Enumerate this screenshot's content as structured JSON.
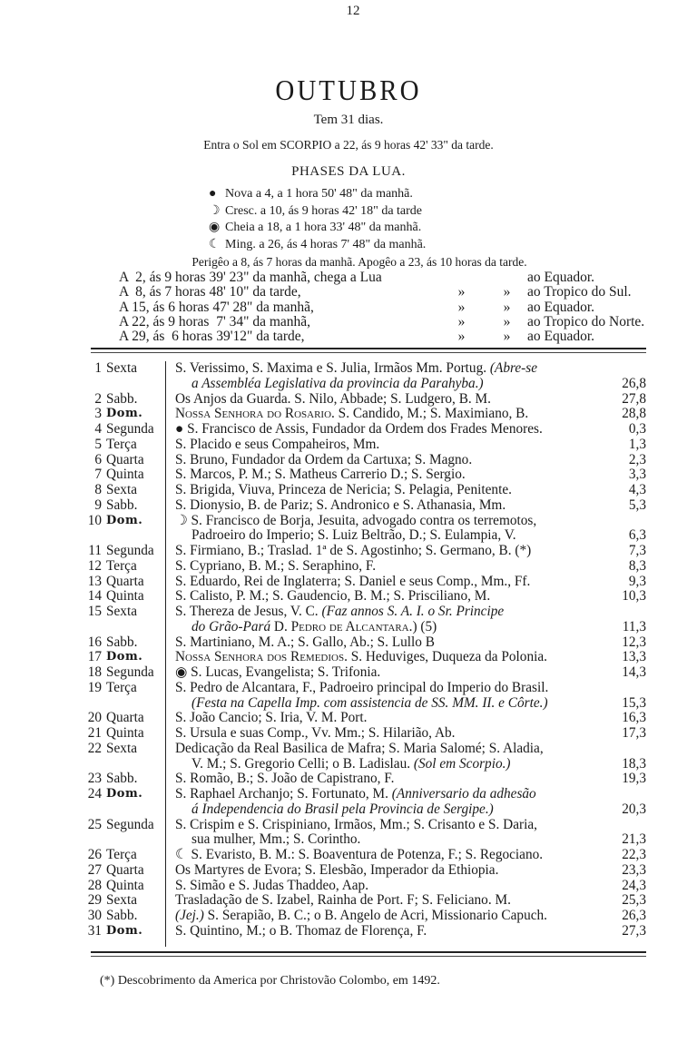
{
  "page_number": "12",
  "month": "OUTUBRO",
  "days_line": "Tem 31 dias.",
  "sun_line": "Entra o Sol em SCORPIO a 22, ás 9 horas 42' 33\" da tarde.",
  "phases_title": "PHASES DA LUA.",
  "phases": [
    {
      "icon": "new-moon",
      "glyph": "●",
      "text": "Nova  a  4, a  1 hora  50' 48\" da manhã."
    },
    {
      "icon": "first-quarter-moon",
      "glyph": "☽",
      "text": "Cresc. a 10, ás 9 horas 42' 18\" da tarde"
    },
    {
      "icon": "full-moon",
      "glyph": "◉",
      "text": "Cheia a 18, a  1 hora  33' 48\" da manhã."
    },
    {
      "icon": "last-quarter-moon",
      "glyph": "☾",
      "text": "Ming. a 26, ás 4 horas  7' 48\" da manhã."
    }
  ],
  "perigee_line": "Perigêo a 8, ás 7 horas da manhã. Apogêo a 23, ás 10 horas da tarde.",
  "equator_lines": [
    {
      "a": "A  2, ás 9 horas 39' 23\" da manhã, chega a Lua",
      "q1": "",
      "q2": "",
      "b": "ao Equador."
    },
    {
      "a": "A  8, ás 7 horas 48' 10\" da tarde,",
      "q1": "»",
      "q2": "»",
      "b": "ao Tropico do Sul."
    },
    {
      "a": "A 15, ás 6 horas 47' 28\" da manhã,",
      "q1": "»",
      "q2": "»",
      "b": "ao Equador."
    },
    {
      "a": "A 22, ás 9 horas  7' 34\" da manhã,",
      "q1": "»",
      "q2": "»",
      "b": "ao Tropico do Norte."
    },
    {
      "a": "A 29, ás  6 horas 39'12\" da tarde,",
      "q1": "»",
      "q2": "»",
      "b": "ao Equador."
    }
  ],
  "rows": [
    {
      "d": "1",
      "w": "Sexta",
      "lines": [
        [
          "S. Verissimo, S. Maxima e S. Julia, Irmãos Mm. Portug. ",
          {
            "t": "(Abre-se",
            "s": "i"
          }
        ],
        [
          {
            "t": "a Assembléa Legislativa da provincia da Parahyba.)",
            "s": "i"
          }
        ]
      ],
      "v": "26,8"
    },
    {
      "d": "2",
      "w": "Sabb.",
      "lines": [
        [
          "Os Anjos da Guarda. S. Nilo, Abbade; S. Ludgero, B. M."
        ]
      ],
      "v": "27,8"
    },
    {
      "d": "3",
      "w": "Dom.",
      "bold": true,
      "lines": [
        [
          {
            "t": "Nossa Senhora do Rosario.",
            "s": "sc"
          },
          " S. Candido, M.; S. Maximiano, B."
        ]
      ],
      "v": "28,8"
    },
    {
      "d": "4",
      "w": "Segunda",
      "icon": "new-moon",
      "glyph": "● ",
      "lines": [
        [
          "S. Francisco de Assis, Fundador da Ordem dos Frades Menores."
        ]
      ],
      "v": "0,3"
    },
    {
      "d": "5",
      "w": "Terça",
      "lines": [
        [
          "S. Placido e seus Compaheiros, Mm."
        ]
      ],
      "v": "1,3"
    },
    {
      "d": "6",
      "w": "Quarta",
      "lines": [
        [
          "S. Bruno, Fundador da Ordem da Cartuxa; S. Magno."
        ]
      ],
      "v": "2,3"
    },
    {
      "d": "7",
      "w": "Quinta",
      "lines": [
        [
          "S. Marcos, P. M.; S. Matheus Carrerio D.; S. Sergio."
        ]
      ],
      "v": "3,3"
    },
    {
      "d": "8",
      "w": "Sexta",
      "lines": [
        [
          "S. Brigida, Viuva, Princeza de Nericia; S. Pelagia, Penitente."
        ]
      ],
      "v": "4,3"
    },
    {
      "d": "9",
      "w": "Sabb.",
      "lines": [
        [
          "S. Dionysio, B. de Pariz; S. Andronico e S. Athanasia, Mm."
        ]
      ],
      "v": "5,3"
    },
    {
      "d": "10",
      "w": "Dom.",
      "bold": true,
      "icon": "first-quarter-moon",
      "glyph": "☽ ",
      "lines": [
        [
          "S. Francisco de Borja, Jesuita, advogado contra os terremotos,"
        ],
        [
          "Padroeiro do Imperio; S. Luiz Beltrão, D.; S. Eulampia, V."
        ]
      ],
      "v": "6,3"
    },
    {
      "d": "11",
      "w": "Segunda",
      "lines": [
        [
          "S. Firmiano, B.; Traslad. 1ª de S. Agostinho; S. Germano, B. (*)"
        ]
      ],
      "v": "7,3"
    },
    {
      "d": "12",
      "w": "Terça",
      "lines": [
        [
          "S. Cypriano, B. M.; S. Seraphino, F."
        ]
      ],
      "v": "8,3"
    },
    {
      "d": "13",
      "w": "Quarta",
      "lines": [
        [
          "S. Eduardo, Rei de Inglaterra; S. Daniel e seus Comp., Mm., Ff."
        ]
      ],
      "v": "9,3"
    },
    {
      "d": "14",
      "w": "Quinta",
      "lines": [
        [
          "S. Calisto, P. M.; S. Gaudencio, B. M.; S. Prisciliano, M."
        ]
      ],
      "v": "10,3"
    },
    {
      "d": "15",
      "w": "Sexta",
      "lines": [
        [
          "S. Thereza de Jesus, V. C. ",
          {
            "t": "(Faz annos S. A. I. o Sr. Principe",
            "s": "i"
          }
        ],
        [
          {
            "t": "do Grão-Pará",
            "s": "i"
          },
          " D. ",
          {
            "t": "Pedro de Alcantara.",
            "s": "sc"
          },
          ") (5)"
        ]
      ],
      "v": "11,3"
    },
    {
      "d": "16",
      "w": "Sabb.",
      "lines": [
        [
          "S. Martiniano, M. A.; S. Gallo, Ab.; S. Lullo B"
        ]
      ],
      "v": "12,3"
    },
    {
      "d": "17",
      "w": "Dom.",
      "bold": true,
      "lines": [
        [
          {
            "t": "Nossa Senhora dos Remedios.",
            "s": "sc"
          },
          " S. Heduviges, Duqueza da Polonia."
        ]
      ],
      "v": "13,3"
    },
    {
      "d": "18",
      "w": "Segunda",
      "icon": "full-moon",
      "glyph": "◉ ",
      "lines": [
        [
          "S. Lucas, Evangelista; S. Trifonia."
        ]
      ],
      "v": "14,3"
    },
    {
      "d": "19",
      "w": "Terça",
      "lines": [
        [
          "S. Pedro de Alcantara, F., Padroeiro principal do Imperio do Brasil."
        ],
        [
          {
            "t": "(Festa na Capella Imp. com assistencia de SS. MM. II. e Côrte.)",
            "s": "i"
          }
        ]
      ],
      "v": "15,3"
    },
    {
      "d": "20",
      "w": "Quarta",
      "lines": [
        [
          "S. João Cancio; S. Iria, V. M. Port."
        ]
      ],
      "v": "16,3"
    },
    {
      "d": "21",
      "w": "Quinta",
      "lines": [
        [
          "S. Ursula e suas Comp., Vv. Mm.; S. Hilarião, Ab."
        ]
      ],
      "v": "17,3"
    },
    {
      "d": "22",
      "w": "Sexta",
      "lines": [
        [
          "Dedicação da Real Basilica de Mafra; S. Maria Salomé; S. Aladia,"
        ],
        [
          "V. M.; S. Gregorio Celli; o B. Ladislau. ",
          {
            "t": "(Sol em Scorpio.)",
            "s": "i"
          }
        ]
      ],
      "v": "18,3"
    },
    {
      "d": "23",
      "w": "Sabb.",
      "lines": [
        [
          "S. Romão, B.; S. João de Capistrano, F."
        ]
      ],
      "v": "19,3"
    },
    {
      "d": "24",
      "w": "Dom.",
      "bold": true,
      "lines": [
        [
          "S. Raphael Archanjo; S. Fortunato, M. ",
          {
            "t": "(Anniversario da adhesão",
            "s": "i"
          }
        ],
        [
          {
            "t": "á Independencia do Brasil pela Provincia de Sergipe.)",
            "s": "i"
          }
        ]
      ],
      "v": "20,3"
    },
    {
      "d": "25",
      "w": "Segunda",
      "lines": [
        [
          "S. Crispim e S. Crispiniano, Irmãos, Mm.; S. Crisanto e S. Daria,"
        ],
        [
          "sua mulher, Mm.; S. Corintho."
        ]
      ],
      "v": "21,3"
    },
    {
      "d": "26",
      "w": "Terça",
      "icon": "last-quarter-moon",
      "glyph": "☾ ",
      "lines": [
        [
          "S. Evaristo, B. M.: S. Boaventura de Potenza, F.; S. Regociano."
        ]
      ],
      "v": "22,3"
    },
    {
      "d": "27",
      "w": "Quarta",
      "lines": [
        [
          "Os Martyres de Evora; S. Elesbão, Imperador da Ethiopia."
        ]
      ],
      "v": "23,3"
    },
    {
      "d": "28",
      "w": "Quinta",
      "lines": [
        [
          "S. Simão e S. Judas Thaddeo, Aap."
        ]
      ],
      "v": "24,3"
    },
    {
      "d": "29",
      "w": "Sexta",
      "lines": [
        [
          "Trasladação de S. Izabel, Rainha de Port. F; S. Feliciano. M."
        ]
      ],
      "v": "25,3"
    },
    {
      "d": "30",
      "w": "Sabb.",
      "lines": [
        [
          {
            "t": "(Jej.)",
            "s": "i"
          },
          " S. Serapião, B. C.; o B. Angelo de Acri, Missionario Capuch."
        ]
      ],
      "v": "26,3"
    },
    {
      "d": "31",
      "w": "Dom.",
      "bold": true,
      "lines": [
        [
          "S. Quintino, M.; o B. Thomaz de Florença, F."
        ]
      ],
      "v": "27,3"
    }
  ],
  "footnote": "(*) Descobrimento da America por Christovão Colombo, em 1492."
}
